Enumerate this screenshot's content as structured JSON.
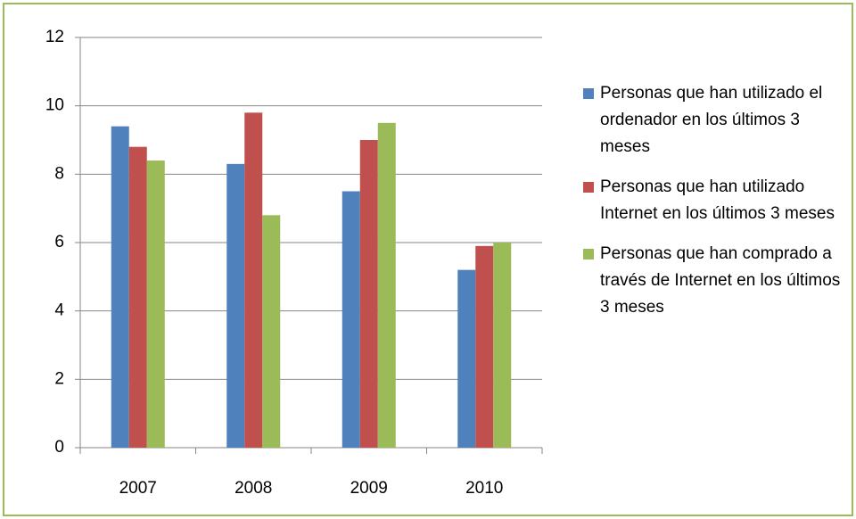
{
  "chart_data": {
    "type": "bar",
    "categories": [
      "2007",
      "2008",
      "2009",
      "2010"
    ],
    "series": [
      {
        "name": "Personas que han utilizado el ordenador en los últimos 3 meses",
        "color": "#4f81bd",
        "values": [
          9.4,
          8.3,
          7.5,
          5.2
        ]
      },
      {
        "name": "Personas que han utilizado Internet en los últimos 3 meses",
        "color": "#c0504d",
        "values": [
          8.8,
          9.8,
          9.0,
          5.9
        ]
      },
      {
        "name": "Personas que han comprado a través de Internet en los últimos 3 meses",
        "color": "#9bbb59",
        "values": [
          8.4,
          6.8,
          9.5,
          6.0
        ]
      }
    ],
    "ylim": [
      0,
      12
    ],
    "yticks": [
      0,
      2,
      4,
      6,
      8,
      10,
      12
    ],
    "grid": true,
    "legend": "right"
  }
}
